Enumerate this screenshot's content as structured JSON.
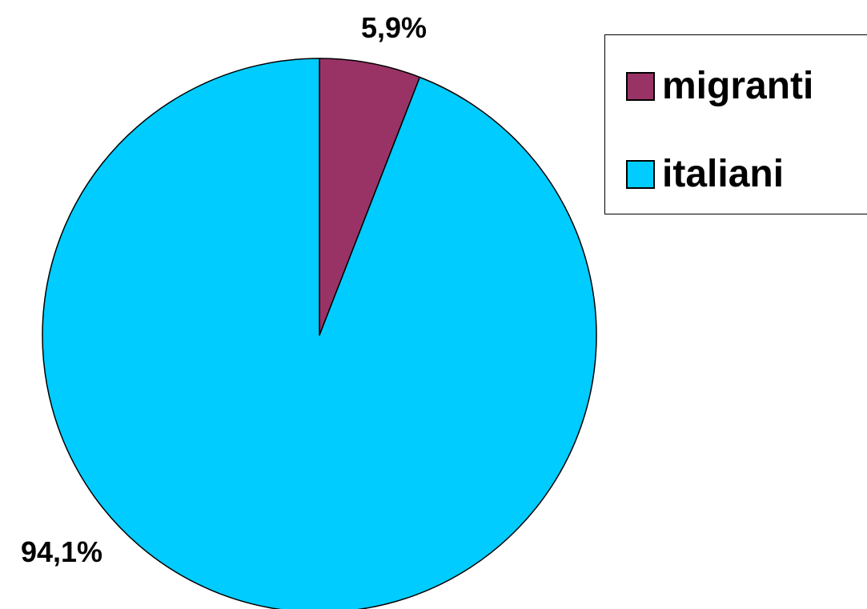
{
  "chart_data": {
    "type": "pie",
    "start_angle_deg": 0,
    "direction": "clockwise",
    "slices": [
      {
        "name": "migranti",
        "value": 5.9,
        "label": "5,9%",
        "color": "#993366"
      },
      {
        "name": "italiani",
        "value": 94.1,
        "label": "94,1%",
        "color": "#00CCFF"
      }
    ],
    "legend": {
      "placement": "top-right",
      "items": [
        {
          "label": "migranti",
          "color": "#993366"
        },
        {
          "label": "italiani",
          "color": "#00CCFF"
        }
      ]
    }
  }
}
